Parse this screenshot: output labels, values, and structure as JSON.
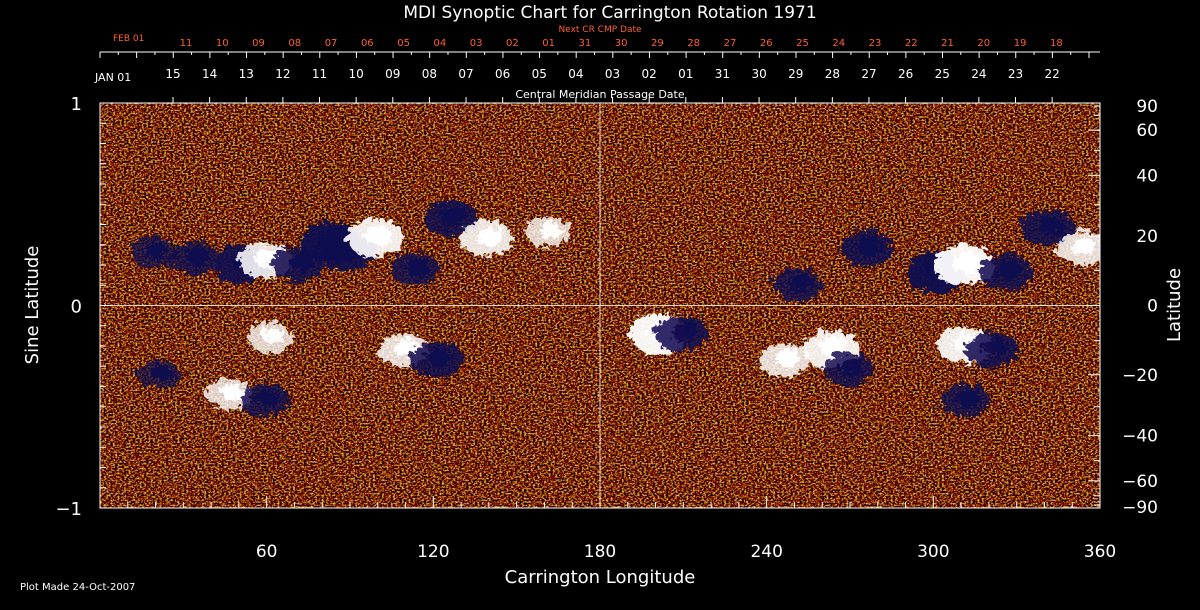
{
  "chart_data": {
    "type": "heatmap",
    "title": "MDI Synoptic Chart for Carrington Rotation 1971",
    "xlabel": "Carrington Longitude",
    "ylabel_left": "Sine Latitude",
    "ylabel_right": "Latitude",
    "xlim": [
      0,
      360
    ],
    "ylim": [
      -1,
      1
    ],
    "x_ticks": [
      60,
      120,
      180,
      240,
      300,
      360
    ],
    "y_ticks_left": [
      {
        "value": 1,
        "label": "1"
      },
      {
        "value": 0,
        "label": "0"
      },
      {
        "value": -1,
        "label": "−1"
      }
    ],
    "y_ticks_right": [
      {
        "lat": 90,
        "label": "90"
      },
      {
        "lat": 60,
        "label": "60"
      },
      {
        "lat": 40,
        "label": "40"
      },
      {
        "lat": 20,
        "label": "20"
      },
      {
        "lat": 0,
        "label": "0"
      },
      {
        "lat": -20,
        "label": "−20"
      },
      {
        "lat": -40,
        "label": "−40"
      },
      {
        "lat": -60,
        "label": "−60"
      },
      {
        "lat": -90,
        "label": "−90"
      }
    ],
    "grid": "center crosshair",
    "cmp_axis_label": "Central Meridian Passage Date",
    "cmp_start_label": "JAN 01",
    "cmp_dates": [
      "15",
      "14",
      "13",
      "12",
      "11",
      "10",
      "09",
      "08",
      "07",
      "06",
      "05",
      "04",
      "03",
      "02",
      "01",
      "31",
      "30",
      "29",
      "28",
      "27",
      "26",
      "25",
      "24",
      "23",
      "22"
    ],
    "next_cr_axis_label": "Next CR CMP Date",
    "next_cr_start_label": "FEB 01",
    "next_cr_dates": [
      "11",
      "10",
      "09",
      "08",
      "07",
      "06",
      "05",
      "04",
      "03",
      "02",
      "01",
      "31",
      "30",
      "29",
      "28",
      "27",
      "26",
      "25",
      "24",
      "23",
      "22",
      "21",
      "20",
      "19",
      "18"
    ],
    "footnote": "Plot Made 24-Oct-2007",
    "colors": {
      "background": "#000000",
      "text": "#ffffff",
      "next_cr_text": "#ff6030",
      "crosshair": "#ffffff",
      "field_low": "#120a50",
      "field_mid": "#d83a10",
      "field_high": "#ffffff"
    },
    "magnetic_regions": [
      {
        "lon": 18,
        "sinlat": 0.28,
        "polarity": "negative",
        "strength": 0.6
      },
      {
        "lon": 33,
        "sinlat": 0.25,
        "polarity": "negative",
        "strength": 0.7
      },
      {
        "lon": 50,
        "sinlat": 0.22,
        "polarity": "negative",
        "strength": 0.9
      },
      {
        "lon": 58,
        "sinlat": 0.24,
        "polarity": "positive",
        "strength": 0.8
      },
      {
        "lon": 70,
        "sinlat": 0.22,
        "polarity": "negative",
        "strength": 0.8
      },
      {
        "lon": 82,
        "sinlat": 0.33,
        "polarity": "negative",
        "strength": 1.0
      },
      {
        "lon": 88,
        "sinlat": 0.28,
        "polarity": "negative",
        "strength": 0.9
      },
      {
        "lon": 98,
        "sinlat": 0.35,
        "polarity": "positive",
        "strength": 0.9
      },
      {
        "lon": 112,
        "sinlat": 0.2,
        "polarity": "negative",
        "strength": 0.7
      },
      {
        "lon": 125,
        "sinlat": 0.45,
        "polarity": "negative",
        "strength": 0.8
      },
      {
        "lon": 138,
        "sinlat": 0.35,
        "polarity": "positive",
        "strength": 0.8
      },
      {
        "lon": 160,
        "sinlat": 0.38,
        "polarity": "positive",
        "strength": 0.6
      },
      {
        "lon": 60,
        "sinlat": -0.14,
        "polarity": "positive",
        "strength": 0.6
      },
      {
        "lon": 20,
        "sinlat": -0.32,
        "polarity": "negative",
        "strength": 0.5
      },
      {
        "lon": 45,
        "sinlat": -0.42,
        "polarity": "positive",
        "strength": 0.6
      },
      {
        "lon": 58,
        "sinlat": -0.45,
        "polarity": "negative",
        "strength": 0.7
      },
      {
        "lon": 108,
        "sinlat": -0.2,
        "polarity": "positive",
        "strength": 0.7
      },
      {
        "lon": 120,
        "sinlat": -0.25,
        "polarity": "negative",
        "strength": 0.8
      },
      {
        "lon": 200,
        "sinlat": -0.12,
        "polarity": "positive",
        "strength": 1.0
      },
      {
        "lon": 208,
        "sinlat": -0.12,
        "polarity": "negative",
        "strength": 0.8
      },
      {
        "lon": 250,
        "sinlat": 0.12,
        "polarity": "negative",
        "strength": 0.7
      },
      {
        "lon": 275,
        "sinlat": 0.3,
        "polarity": "negative",
        "strength": 0.8
      },
      {
        "lon": 300,
        "sinlat": 0.18,
        "polarity": "negative",
        "strength": 1.0
      },
      {
        "lon": 310,
        "sinlat": 0.22,
        "polarity": "positive",
        "strength": 1.0
      },
      {
        "lon": 325,
        "sinlat": 0.18,
        "polarity": "negative",
        "strength": 0.8
      },
      {
        "lon": 340,
        "sinlat": 0.4,
        "polarity": "negative",
        "strength": 0.8
      },
      {
        "lon": 352,
        "sinlat": 0.3,
        "polarity": "positive",
        "strength": 0.7
      },
      {
        "lon": 245,
        "sinlat": -0.25,
        "polarity": "positive",
        "strength": 0.7
      },
      {
        "lon": 262,
        "sinlat": -0.2,
        "polarity": "positive",
        "strength": 0.9
      },
      {
        "lon": 268,
        "sinlat": -0.3,
        "polarity": "negative",
        "strength": 0.7
      },
      {
        "lon": 310,
        "sinlat": -0.18,
        "polarity": "positive",
        "strength": 0.9
      },
      {
        "lon": 320,
        "sinlat": -0.2,
        "polarity": "negative",
        "strength": 0.8
      },
      {
        "lon": 310,
        "sinlat": -0.45,
        "polarity": "negative",
        "strength": 0.7
      }
    ]
  }
}
